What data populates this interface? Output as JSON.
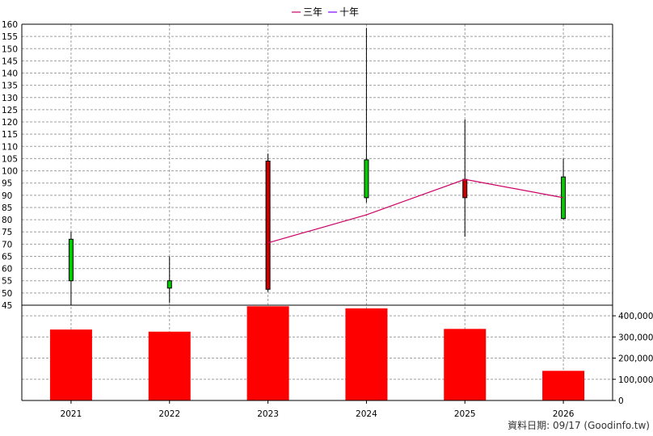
{
  "chart_data": {
    "type": "candlestick+bar",
    "legend": [
      {
        "name": "三年",
        "color": "#cc0066"
      },
      {
        "name": "十年",
        "color": "#7f00ff"
      }
    ],
    "categories": [
      "2021",
      "2022",
      "2023",
      "2024",
      "2025",
      "2026"
    ],
    "price": {
      "ylim": [
        45,
        160
      ],
      "ticks": [
        45,
        50,
        55,
        60,
        65,
        70,
        75,
        80,
        85,
        90,
        95,
        100,
        105,
        110,
        115,
        120,
        125,
        130,
        135,
        140,
        145,
        150,
        155,
        160
      ],
      "candles": [
        {
          "open": 55,
          "close": 72,
          "high": 75,
          "low": 45,
          "color": "#00cc00"
        },
        {
          "open": 52,
          "close": 55,
          "high": 65,
          "low": 46,
          "color": "#00cc00"
        },
        {
          "open": 104,
          "close": 51.5,
          "high": 107,
          "low": 50.5,
          "color": "#cc0000"
        },
        {
          "open": 89,
          "close": 104.5,
          "high": 158.5,
          "low": 87,
          "color": "#00cc00"
        },
        {
          "open": 96.5,
          "close": 89,
          "high": 121,
          "low": 73,
          "color": "#cc0000"
        },
        {
          "open": 80.5,
          "close": 97.5,
          "high": 105,
          "low": 80,
          "color": "#00cc00"
        }
      ],
      "three_year_line": [
        null,
        null,
        70.5,
        82,
        96.5,
        89
      ]
    },
    "volume": {
      "ylim": [
        0,
        450000
      ],
      "ticks": [
        0,
        100000,
        200000,
        300000,
        400000
      ],
      "tick_labels": [
        "0",
        "100,000",
        "200,000",
        "300,000",
        "400,000"
      ],
      "values": [
        335000,
        325000,
        445000,
        435000,
        338000,
        140000
      ],
      "color": "#ff0000"
    }
  },
  "footer": {
    "label": "資料日期: 09/17  (Goodinfo.tw)"
  }
}
